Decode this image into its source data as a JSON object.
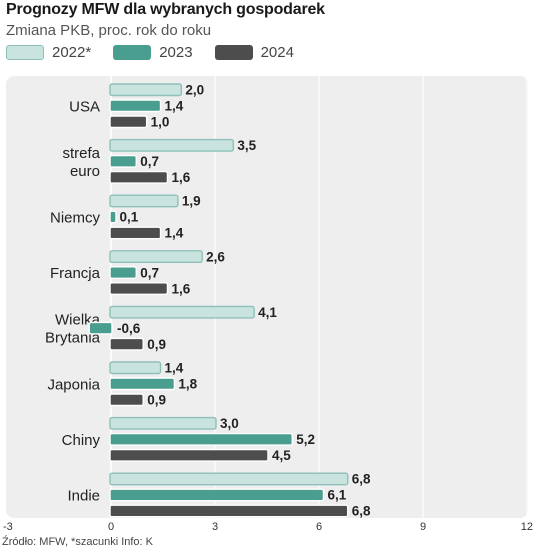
{
  "header": {
    "title": "Prognozy MFW dla wybranych gospodarek",
    "subtitle": "Zmiana PKB, proc. rok do roku"
  },
  "footer": {
    "source": "Źródło: MFW, *szacunki Info: K"
  },
  "colors": {
    "s2022": "#c9e4df",
    "s2022_border": "#8fbfb8",
    "s2023": "#4a9e8f",
    "s2024": "#4d4d4d",
    "panel": "#eeeeee"
  },
  "chart_data": {
    "type": "bar",
    "orientation": "horizontal",
    "categories": [
      "USA",
      "strefa\neuro",
      "Niemcy",
      "Francja",
      "Wielka\nBrytania",
      "Japonia",
      "Chiny",
      "Indie"
    ],
    "series": [
      {
        "name": "2022*",
        "values": [
          2.0,
          3.5,
          1.9,
          2.6,
          4.1,
          1.4,
          3.0,
          6.8
        ],
        "labels": [
          "2,0",
          "3,5",
          "1,9",
          "2,6",
          "4,1",
          "1,4",
          "3,0",
          "6,8"
        ]
      },
      {
        "name": "2023",
        "values": [
          1.4,
          0.7,
          0.1,
          0.7,
          -0.6,
          1.8,
          5.2,
          6.1
        ],
        "labels": [
          "1,4",
          "0,7",
          "0,1",
          "0,7",
          "-0,6",
          "1,8",
          "5,2",
          "6,1"
        ]
      },
      {
        "name": "2024",
        "values": [
          1.0,
          1.6,
          1.4,
          1.6,
          0.9,
          0.9,
          4.5,
          6.8
        ],
        "labels": [
          "1,0",
          "1,6",
          "1,4",
          "1,6",
          "0,9",
          "0,9",
          "4,5",
          "6,8"
        ]
      }
    ],
    "xlim": [
      -3,
      12
    ],
    "xticks": [
      "-3",
      "0",
      "3",
      "6",
      "9",
      "12"
    ],
    "xtick_values": [
      -3,
      0,
      3,
      6,
      9,
      12
    ],
    "grid": true,
    "legend": "top-left"
  }
}
